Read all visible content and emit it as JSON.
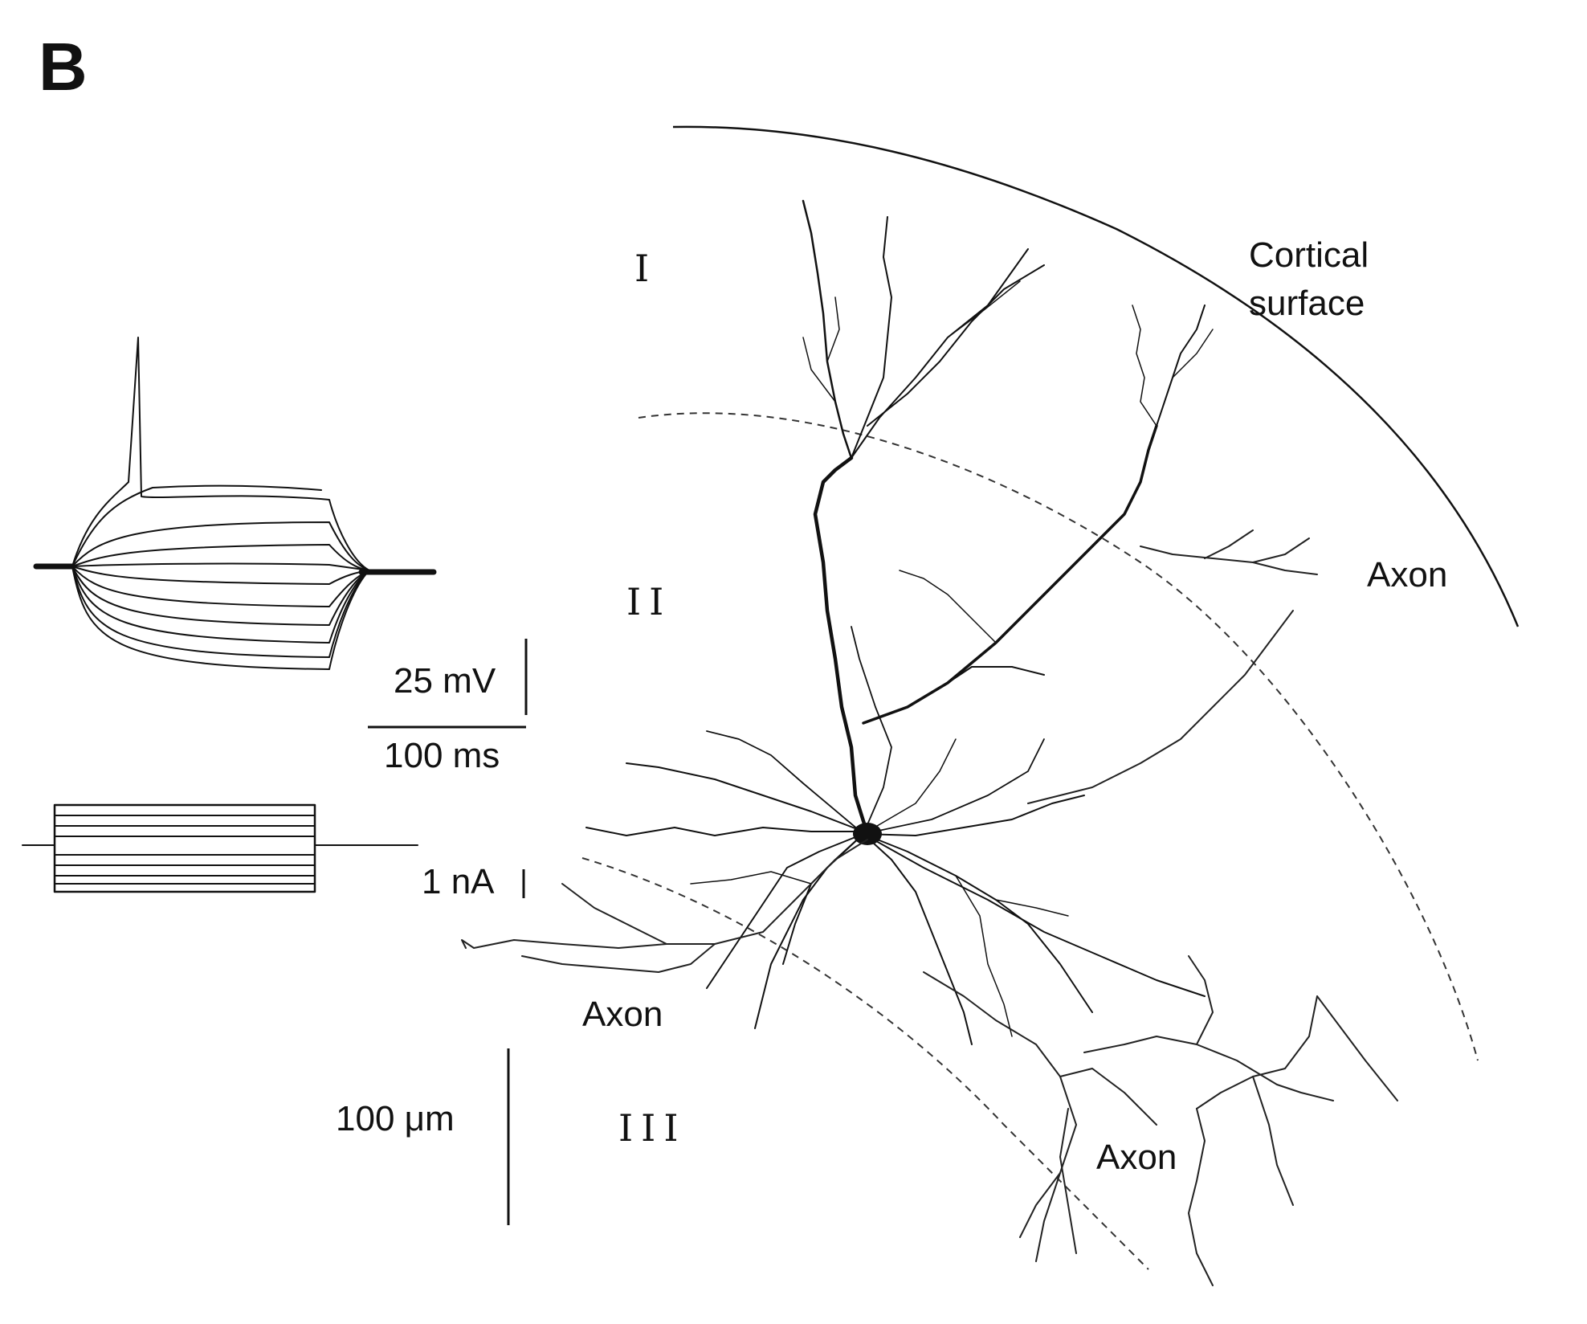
{
  "figure": {
    "panel_label": "B",
    "scale_bars": {
      "voltage": "25 mV",
      "time": "100 ms",
      "current": "1 nA",
      "length": "100 μm"
    },
    "layers": [
      "I",
      "II",
      "III"
    ],
    "annotations": {
      "cortical_surface_line1": "Cortical",
      "cortical_surface_line2": "surface",
      "axon_right": "Axon",
      "axon_left": "Axon",
      "axon_bottom": "Axon"
    }
  }
}
